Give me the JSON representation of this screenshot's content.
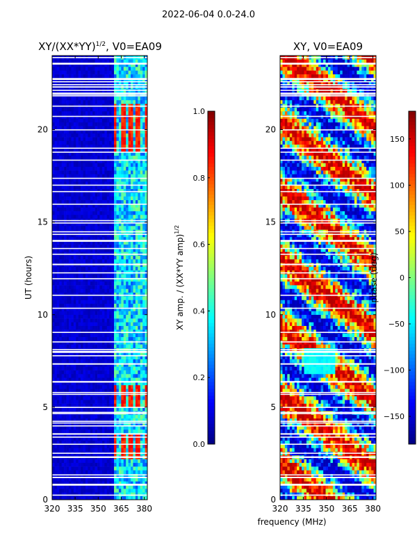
{
  "suptitle": "2022-06-04 0.0-24.0",
  "chart_data": [
    {
      "type": "heatmap",
      "title_main": "XY/(XX*YY)",
      "title_exp": "1/2",
      "title_suffix": ", V0=EA09",
      "xlabel": "",
      "ylabel": "UT (hours)",
      "xlim": [
        320,
        382
      ],
      "ylim": [
        0,
        24
      ],
      "xticks": [
        "320",
        "335",
        "350",
        "365",
        "380"
      ],
      "xtick_values": [
        320,
        335,
        350,
        365,
        380
      ],
      "yticks": [
        "0",
        "5",
        "10",
        "15",
        "20"
      ],
      "ytick_values": [
        0,
        5,
        10,
        15,
        20
      ],
      "colorbar": {
        "label_main": "XY amp. / (XX*YY amp)",
        "label_exp": "1/2",
        "range": [
          0.0,
          1.0
        ],
        "ticks": [
          "0.0",
          "0.2",
          "0.4",
          "0.6",
          "0.8",
          "1.0"
        ],
        "tick_values": [
          0.0,
          0.2,
          0.4,
          0.6,
          0.8,
          1.0
        ]
      },
      "colormap": "jet",
      "features": {
        "low_band_mhz": [
          320,
          360
        ],
        "low_band_value": 0.05,
        "active_band_mhz": [
          360,
          380
        ],
        "active_band_value": 0.35,
        "high_value_hours": [
          [
            18.9,
            21.3
          ],
          [
            5.1,
            6.2
          ],
          [
            2.3,
            3.6
          ]
        ],
        "high_value": 0.9
      }
    },
    {
      "type": "heatmap",
      "title": "XY, V0=EA09",
      "xlabel": "frequency (MHz)",
      "ylabel": "",
      "xlim": [
        320,
        382
      ],
      "ylim": [
        0,
        24
      ],
      "xticks": [
        "320",
        "335",
        "350",
        "365",
        "380"
      ],
      "xtick_values": [
        320,
        335,
        350,
        365,
        380
      ],
      "yticks": [
        "0",
        "5",
        "10",
        "15",
        "20"
      ],
      "ytick_values": [
        0,
        5,
        10,
        15,
        20
      ],
      "colorbar": {
        "label": "phase (deg)",
        "range": [
          -180,
          180
        ],
        "ticks": [
          "−150",
          "−100",
          "−50",
          "0",
          "50",
          "100",
          "150"
        ],
        "tick_values": [
          -150,
          -100,
          -50,
          0,
          50,
          100,
          150
        ]
      },
      "colormap": "jet",
      "features": {
        "value_range_deg": [
          -180,
          180
        ],
        "calm_region_hours": [
          6.8,
          8.2
        ],
        "calm_region_mhz": [
          335,
          355
        ]
      }
    }
  ]
}
